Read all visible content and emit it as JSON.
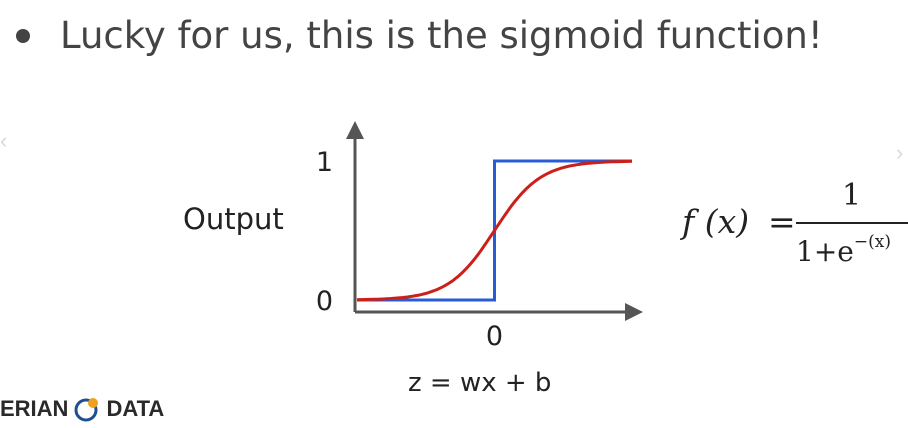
{
  "headline": "Lucky for us, this is the sigmoid function!",
  "formula": {
    "lhs": "f (x)",
    "equals": "=",
    "numerator": "1",
    "denominator_base": "1+e",
    "denominator_exponent": "−(x)"
  },
  "logo": {
    "left": "ERIAN",
    "right": "DATA"
  },
  "chart_data": {
    "type": "line",
    "title": "",
    "xlabel": "z = wx + b",
    "ylabel": "Output",
    "x_ticks": [
      {
        "value": 0,
        "label": "0"
      }
    ],
    "y_ticks": [
      {
        "value": 0,
        "label": "0"
      },
      {
        "value": 1,
        "label": "1"
      }
    ],
    "xlim": [
      -6,
      6
    ],
    "ylim": [
      0,
      1.15
    ],
    "grid": false,
    "legend": "none",
    "series": [
      {
        "kind": "step",
        "color": "#2a5bd7",
        "x": [
          -6,
          0,
          0,
          6
        ],
        "y": [
          0,
          0,
          1,
          1
        ]
      },
      {
        "kind": "sigmoid",
        "color": "#cc1f1a",
        "x": [
          -6,
          -5,
          -4,
          -3,
          -2,
          -1,
          0,
          1,
          2,
          3,
          4,
          5,
          6
        ],
        "y": [
          0.002,
          0.007,
          0.018,
          0.047,
          0.119,
          0.269,
          0.5,
          0.731,
          0.881,
          0.953,
          0.982,
          0.993,
          0.998
        ]
      }
    ]
  }
}
